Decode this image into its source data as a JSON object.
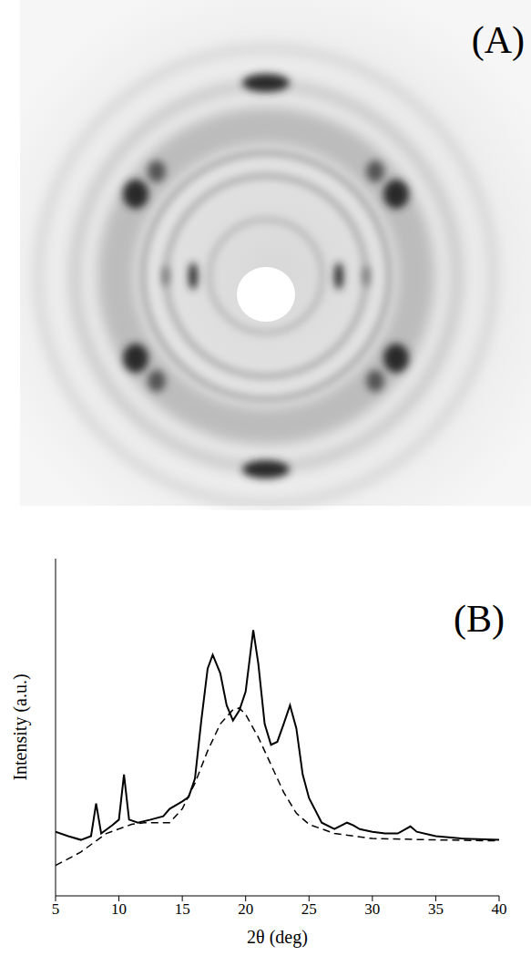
{
  "panel_a": {
    "label": "(A)"
  },
  "chart_data": {
    "type": "line",
    "panel_label": "(B)",
    "xlabel": "2θ (deg)",
    "ylabel": "Intensity (a.u.)",
    "xlim": [
      5,
      40
    ],
    "xticks": [
      5,
      10,
      15,
      20,
      25,
      30,
      35,
      40
    ],
    "ylim": [
      0,
      100
    ],
    "tick_labels": "x",
    "series": [
      {
        "color": "#000000",
        "line_style": "solid",
        "x": [
          5,
          6,
          7,
          7.8,
          8.2,
          8.6,
          9.5,
          10,
          10.4,
          10.8,
          11.5,
          12.5,
          13.5,
          14,
          15,
          15.5,
          16,
          16.5,
          17,
          17.4,
          18,
          18.5,
          19,
          19.5,
          20,
          20.6,
          21,
          21.5,
          22,
          22.5,
          23,
          23.5,
          24,
          24.5,
          25,
          26,
          27,
          28,
          28.5,
          29,
          30,
          31,
          32,
          33,
          33.5,
          35,
          37,
          40
        ],
        "values": [
          19,
          17.7,
          16.6,
          17.7,
          27.4,
          18.5,
          21,
          22.6,
          36,
          22.6,
          21.7,
          22.6,
          23.6,
          25.8,
          28,
          29.3,
          34.8,
          52,
          67.4,
          71.5,
          66,
          56.5,
          52,
          55,
          60.6,
          78.8,
          68.8,
          51,
          44.8,
          45.7,
          51,
          56.5,
          49.7,
          36,
          29,
          21.7,
          19.8,
          21.7,
          20.9,
          19.8,
          19,
          18.5,
          18.5,
          20.6,
          19,
          17.7,
          17,
          16.6
        ]
      },
      {
        "color": "#000000",
        "line_style": "dashed",
        "x": [
          5,
          7,
          9,
          11,
          12,
          14,
          15,
          16,
          17,
          18,
          19,
          19.5,
          20,
          21,
          22,
          23,
          24,
          25,
          27,
          30,
          35,
          40
        ],
        "values": [
          9,
          13,
          18.5,
          21.2,
          21.7,
          21.7,
          25.8,
          33.4,
          43,
          51,
          55.2,
          55.7,
          53.8,
          47,
          38.9,
          30.7,
          24.5,
          21.2,
          18.5,
          17,
          16.6,
          16.3
        ]
      }
    ]
  }
}
